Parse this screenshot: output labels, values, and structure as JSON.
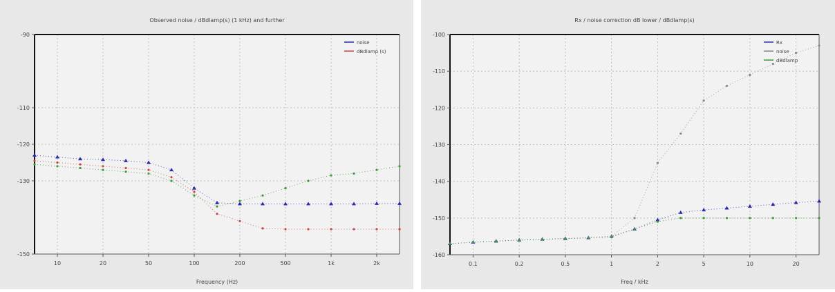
{
  "chart_data": [
    {
      "type": "line",
      "title": "Observed noise / dBdlamp(s) (1 kHz) and further",
      "xlabel": "Frequency (Hz)",
      "ylabel": "",
      "xlim": [
        0,
        16
      ],
      "ylim": [
        -150,
        -90
      ],
      "x_ticks": [
        1,
        3,
        5,
        7,
        9,
        11,
        13,
        15
      ],
      "x_tick_labels": [
        "10",
        "20",
        "50",
        "100",
        "200",
        "500",
        "1k",
        "2k"
      ],
      "y_ticks": [
        -150,
        -130,
        -120,
        -110,
        -90
      ],
      "y_tick_labels": [
        "-150",
        "-130",
        "-120",
        "-110",
        "-90"
      ],
      "grid": true,
      "legend_position": "top-right",
      "legend": [
        "noise",
        "dBdlamp (s)"
      ],
      "series": [
        {
          "name": "",
          "color": "#2a2aa8",
          "marker": "triangle",
          "x": [
            0,
            1,
            2,
            3,
            4,
            5,
            6,
            7,
            8,
            9,
            10,
            11,
            12,
            13,
            14,
            15,
            16
          ],
          "y": [
            -123,
            -123.5,
            -124,
            -124.2,
            -124.5,
            -125,
            -127,
            -132,
            -136,
            -136.3,
            -136.3,
            -136.3,
            -136.3,
            -136.3,
            -136.3,
            -136.2,
            -136.2
          ]
        },
        {
          "name": "",
          "color": "#cc4444",
          "marker": "dot",
          "x": [
            0,
            1,
            2,
            3,
            4,
            5,
            6,
            7,
            8,
            9,
            10,
            11,
            12,
            13,
            14,
            15,
            16
          ],
          "y": [
            -124.5,
            -125,
            -125.5,
            -126,
            -126.5,
            -127,
            -129,
            -133,
            -139,
            -141,
            -143,
            -143.2,
            -143.2,
            -143.2,
            -143.2,
            -143.2,
            -143.2
          ]
        },
        {
          "name": "",
          "color": "#3a9a3a",
          "marker": "dot",
          "x": [
            0,
            1,
            2,
            3,
            4,
            5,
            6,
            7,
            8,
            9,
            10,
            11,
            12,
            13,
            14,
            15,
            16
          ],
          "y": [
            -125.5,
            -126,
            -126.5,
            -127,
            -127.5,
            -128,
            -130,
            -134,
            -137,
            -135.5,
            -134,
            -132,
            -130,
            -128.5,
            -128,
            -127,
            -126
          ]
        }
      ]
    },
    {
      "type": "line",
      "title": "Rx / noise correction dB lower / dBdlamp(s)",
      "xlabel": "Freq / kHz",
      "ylabel": "",
      "xlim": [
        0,
        16
      ],
      "ylim": [
        -160,
        -100
      ],
      "x_ticks": [
        1,
        3,
        5,
        7,
        9,
        11,
        13,
        15
      ],
      "x_tick_labels": [
        "0.1",
        "0.2",
        "0.5",
        "1",
        "2",
        "5",
        "10",
        "20"
      ],
      "y_ticks": [
        -160,
        -150,
        -140,
        -130,
        -120,
        -110,
        -100
      ],
      "y_tick_labels": [
        "-160",
        "-150",
        "-140",
        "-130",
        "-120",
        "-110",
        "-100"
      ],
      "grid": true,
      "legend_position": "top-right",
      "legend": [
        "Rx",
        "noise",
        "dBdlamp"
      ],
      "series": [
        {
          "name": "",
          "color": "#2a2aa8",
          "marker": "triangle",
          "x": [
            0,
            1,
            2,
            3,
            4,
            5,
            6,
            7,
            8,
            9,
            10,
            11,
            12,
            13,
            14,
            15,
            16
          ],
          "y": [
            -157,
            -156.6,
            -156.3,
            -156,
            -155.8,
            -155.6,
            -155.4,
            -155,
            -153,
            -150.5,
            -148.5,
            -147.8,
            -147.3,
            -146.8,
            -146.3,
            -145.8,
            -145.4
          ]
        },
        {
          "name": "",
          "color": "#888888",
          "marker": "dot",
          "x": [
            0,
            1,
            2,
            3,
            4,
            5,
            6,
            7,
            8,
            9,
            10,
            11,
            12,
            13,
            14,
            15,
            16
          ],
          "y": [
            -157,
            -156.6,
            -156.3,
            -156,
            -155.8,
            -155.6,
            -155.4,
            -155,
            -150,
            -135,
            -127,
            -118,
            -114,
            -111,
            -108,
            -105,
            -103
          ]
        },
        {
          "name": "",
          "color": "#3a9a3a",
          "marker": "dot",
          "x": [
            0,
            1,
            2,
            3,
            4,
            5,
            6,
            7,
            8,
            9,
            10,
            11,
            12,
            13,
            14,
            15,
            16
          ],
          "y": [
            -157,
            -156.6,
            -156.3,
            -156,
            -155.8,
            -155.6,
            -155.4,
            -155.2,
            -153,
            -151,
            -150,
            -150,
            -150,
            -150,
            -150,
            -150,
            -150
          ]
        }
      ]
    }
  ]
}
